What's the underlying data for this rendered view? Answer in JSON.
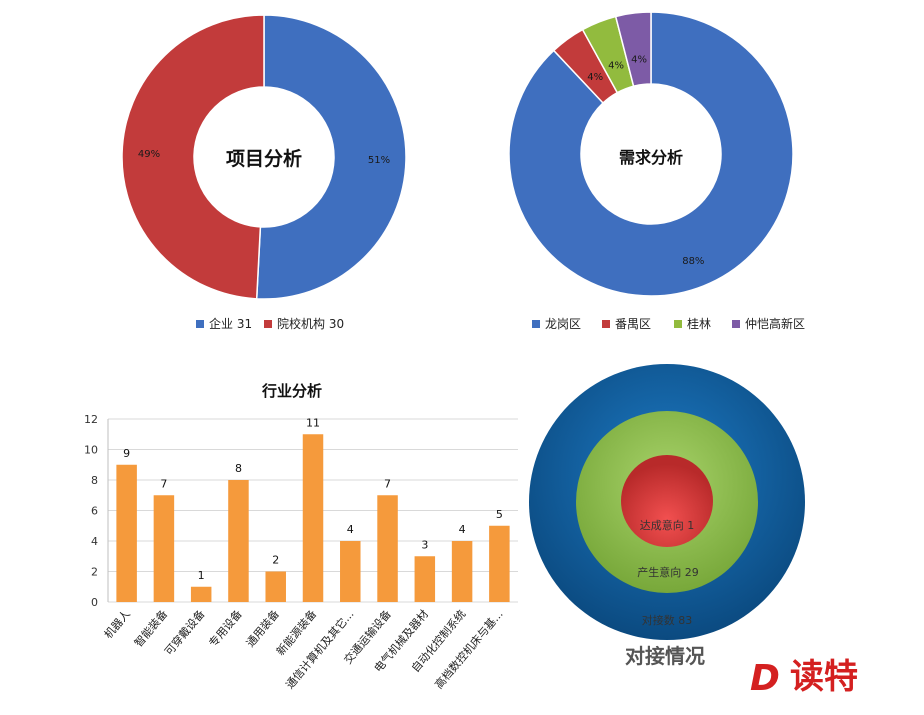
{
  "colors": {
    "blue": "#3f6fbf",
    "red": "#c23b3b",
    "green": "#92bb3e",
    "purple": "#7d5ba6",
    "orange": "#f59a3c",
    "ring_outer": "#0f5b97",
    "ring_mid": "#8cc04a",
    "ring_inner": "#d93a3a",
    "logo_red": "#d42020"
  },
  "chart_data": [
    {
      "type": "pie",
      "title": "项目分析",
      "donut": true,
      "slices": [
        {
          "label": "企业 31",
          "value": 31,
          "percent_label": "51%",
          "color": "#3f6fbf"
        },
        {
          "label": "院校机构 30",
          "value": 30,
          "percent_label": "49%",
          "color": "#c23b3b"
        }
      ],
      "legend_position": "bottom"
    },
    {
      "type": "pie",
      "title": "需求分析",
      "donut": true,
      "slices": [
        {
          "label": "龙岗区",
          "value": 88,
          "percent_label": "88%",
          "color": "#3f6fbf"
        },
        {
          "label": "番禺区",
          "value": 4,
          "percent_label": "4%",
          "color": "#c23b3b"
        },
        {
          "label": "桂林",
          "value": 4,
          "percent_label": "4%",
          "color": "#92bb3e"
        },
        {
          "label": "仲恺高新区",
          "value": 4,
          "percent_label": "4%",
          "color": "#7d5ba6"
        }
      ],
      "legend_position": "bottom"
    },
    {
      "type": "bar",
      "title": "行业分析",
      "categories": [
        "机器人",
        "智能装备",
        "可穿戴设备",
        "专用设备",
        "通用装备",
        "新能源装备",
        "通信计算机及其它...",
        "交通运输设备",
        "电气机械及器材",
        "自动化控制系统",
        "高档数控机床与基..."
      ],
      "values": [
        9,
        7,
        1,
        8,
        2,
        11,
        4,
        7,
        3,
        4,
        5
      ],
      "ylim": [
        0,
        12
      ],
      "yticks": [
        "0",
        "2",
        "4",
        "6",
        "8",
        "10",
        "12"
      ],
      "color": "#f59a3c",
      "grid": true
    },
    {
      "type": "concentric",
      "title": "对接情况",
      "rings": [
        {
          "label": "对接数 83",
          "value": 83,
          "color": "#0f5b97"
        },
        {
          "label": "产生意向 29",
          "value": 29,
          "color": "#8cc04a"
        },
        {
          "label": "达成意向 1",
          "value": 1,
          "color": "#d93a3a"
        }
      ]
    }
  ],
  "logo": {
    "mark": "D",
    "text": "读特"
  }
}
